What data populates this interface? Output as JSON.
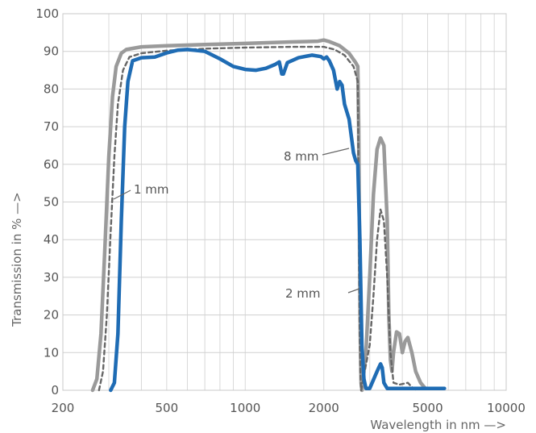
{
  "chart_data": {
    "type": "line",
    "xlabel": "Wavelength in nm —>",
    "ylabel": "Transmission in % —>",
    "xscale": "log",
    "xlim": [
      200,
      10000
    ],
    "ylim": [
      0,
      100
    ],
    "grid": true,
    "x_ticks": [
      200,
      500,
      1000,
      2000,
      5000,
      10000
    ],
    "x_tick_labels": [
      "200",
      "500",
      "1000",
      "2000",
      "5000",
      "10000"
    ],
    "y_ticks": [
      0,
      10,
      20,
      30,
      40,
      50,
      60,
      70,
      80,
      90,
      100
    ],
    "y_tick_labels": [
      "0",
      "10",
      "20",
      "30",
      "40",
      "50",
      "60",
      "70",
      "80",
      "90",
      "100"
    ],
    "series": [
      {
        "name": "1 mm",
        "color": "#9a9a9a",
        "style": "solid",
        "points": [
          [
            260,
            0
          ],
          [
            270,
            3
          ],
          [
            280,
            15
          ],
          [
            290,
            38
          ],
          [
            300,
            62
          ],
          [
            310,
            78
          ],
          [
            320,
            86
          ],
          [
            335,
            89.5
          ],
          [
            350,
            90.5
          ],
          [
            400,
            91.2
          ],
          [
            500,
            91.5
          ],
          [
            700,
            91.8
          ],
          [
            1000,
            92.1
          ],
          [
            1500,
            92.5
          ],
          [
            1900,
            92.7
          ],
          [
            2000,
            93
          ],
          [
            2100,
            92.6
          ],
          [
            2300,
            91.5
          ],
          [
            2500,
            89.5
          ],
          [
            2650,
            87
          ],
          [
            2700,
            86
          ],
          [
            2720,
            70
          ],
          [
            2740,
            40
          ],
          [
            2760,
            15
          ],
          [
            2780,
            2
          ],
          [
            2800,
            0
          ],
          [
            2900,
            10
          ],
          [
            3000,
            30
          ],
          [
            3100,
            52
          ],
          [
            3200,
            64
          ],
          [
            3300,
            67
          ],
          [
            3400,
            65
          ],
          [
            3500,
            45
          ],
          [
            3550,
            20
          ],
          [
            3600,
            8
          ],
          [
            3650,
            5
          ],
          [
            3700,
            10
          ],
          [
            3800,
            15.5
          ],
          [
            3900,
            15
          ],
          [
            4000,
            10
          ],
          [
            4100,
            13
          ],
          [
            4200,
            14
          ],
          [
            4350,
            10
          ],
          [
            4500,
            5
          ],
          [
            4700,
            2
          ],
          [
            4900,
            0.5
          ]
        ]
      },
      {
        "name": "2 mm",
        "color": "#666666",
        "style": "dashed",
        "points": [
          [
            275,
            0
          ],
          [
            285,
            5
          ],
          [
            295,
            20
          ],
          [
            305,
            42
          ],
          [
            315,
            62
          ],
          [
            325,
            76
          ],
          [
            340,
            85
          ],
          [
            360,
            88.5
          ],
          [
            400,
            89.5
          ],
          [
            500,
            90.2
          ],
          [
            700,
            90.7
          ],
          [
            1000,
            91
          ],
          [
            1500,
            91.2
          ],
          [
            2000,
            91.2
          ],
          [
            2200,
            90.5
          ],
          [
            2400,
            89
          ],
          [
            2600,
            86
          ],
          [
            2700,
            82
          ],
          [
            2720,
            50
          ],
          [
            2740,
            20
          ],
          [
            2760,
            5
          ],
          [
            2780,
            0
          ],
          [
            3000,
            12
          ],
          [
            3100,
            25
          ],
          [
            3200,
            40
          ],
          [
            3300,
            48
          ],
          [
            3400,
            45
          ],
          [
            3500,
            30
          ],
          [
            3600,
            10
          ],
          [
            3700,
            2
          ],
          [
            3900,
            1.5
          ],
          [
            4200,
            2
          ],
          [
            4400,
            0.5
          ],
          [
            4600,
            0
          ]
        ]
      },
      {
        "name": "8 mm",
        "color": "#1f6cb4",
        "style": "solid",
        "points": [
          [
            305,
            0
          ],
          [
            315,
            2
          ],
          [
            325,
            15
          ],
          [
            335,
            45
          ],
          [
            345,
            70
          ],
          [
            355,
            82
          ],
          [
            370,
            87.5
          ],
          [
            400,
            88.3
          ],
          [
            450,
            88.5
          ],
          [
            500,
            89.6
          ],
          [
            550,
            90.3
          ],
          [
            600,
            90.5
          ],
          [
            700,
            90
          ],
          [
            800,
            88
          ],
          [
            900,
            86
          ],
          [
            1000,
            85.2
          ],
          [
            1100,
            85
          ],
          [
            1200,
            85.5
          ],
          [
            1300,
            86.5
          ],
          [
            1350,
            87.2
          ],
          [
            1380,
            84
          ],
          [
            1400,
            84
          ],
          [
            1450,
            87
          ],
          [
            1600,
            88.3
          ],
          [
            1800,
            89
          ],
          [
            1950,
            88.6
          ],
          [
            2000,
            88
          ],
          [
            2050,
            88.5
          ],
          [
            2100,
            87.5
          ],
          [
            2180,
            85
          ],
          [
            2250,
            80
          ],
          [
            2300,
            82
          ],
          [
            2350,
            81
          ],
          [
            2400,
            76
          ],
          [
            2500,
            72
          ],
          [
            2600,
            63
          ],
          [
            2650,
            61
          ],
          [
            2700,
            60
          ],
          [
            2750,
            40
          ],
          [
            2800,
            12
          ],
          [
            2850,
            3
          ],
          [
            2900,
            0.5
          ],
          [
            3000,
            0.5
          ],
          [
            3200,
            5
          ],
          [
            3300,
            7
          ],
          [
            3350,
            6
          ],
          [
            3400,
            2
          ],
          [
            3500,
            0.5
          ],
          [
            4000,
            0.5
          ],
          [
            5000,
            0.5
          ],
          [
            5800,
            0.5
          ]
        ]
      }
    ],
    "annotations": [
      {
        "text": "1 mm",
        "series": "1 mm",
        "at": [
          310,
          50
        ]
      },
      {
        "text": "2 mm",
        "series": "2 mm",
        "at": [
          3000,
          35
        ]
      },
      {
        "text": "8 mm",
        "series": "8 mm",
        "at": [
          2550,
          63
        ]
      }
    ]
  }
}
